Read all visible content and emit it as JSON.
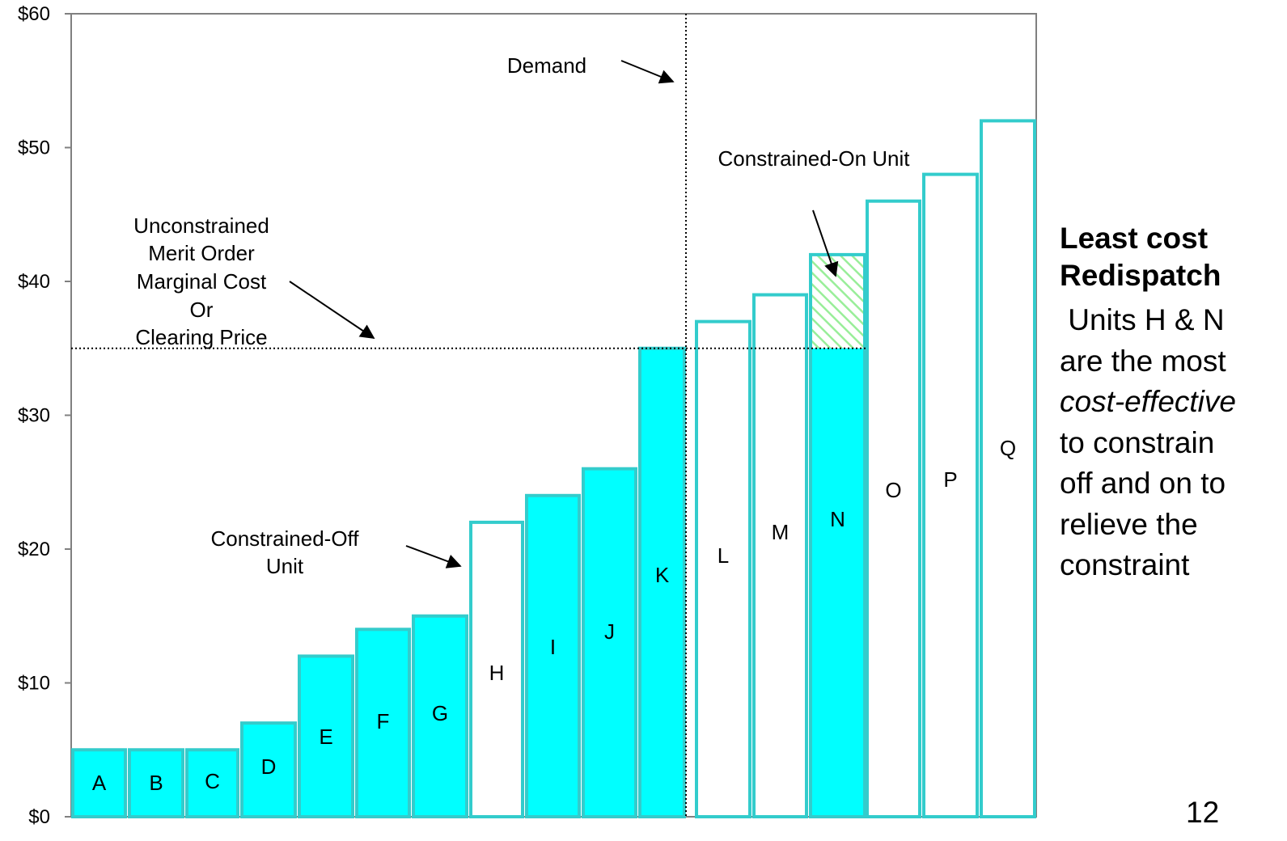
{
  "chart_data": {
    "type": "bar",
    "categories": [
      "A",
      "B",
      "C",
      "D",
      "E",
      "F",
      "G",
      "H",
      "I",
      "J",
      "K",
      "L",
      "M",
      "N",
      "O",
      "P",
      "Q"
    ],
    "values": [
      5,
      5,
      5,
      7,
      12,
      14,
      15,
      22,
      24,
      26,
      35,
      37,
      39,
      42,
      46,
      48,
      52
    ],
    "series": [
      {
        "values": [
          5,
          5,
          5,
          7,
          12,
          14,
          15,
          null,
          24,
          26,
          35,
          null,
          null,
          35,
          null,
          null,
          null
        ]
      },
      {
        "values": [
          null,
          null,
          null,
          null,
          null,
          null,
          null,
          22,
          null,
          null,
          null,
          37,
          39,
          null,
          46,
          48,
          52
        ]
      },
      {
        "values": [
          null,
          null,
          null,
          null,
          null,
          null,
          null,
          null,
          null,
          null,
          null,
          null,
          null,
          7,
          null,
          null,
          null
        ]
      }
    ],
    "ylim": [
      0,
      60
    ],
    "yticks": [
      0,
      10,
      20,
      30,
      40,
      50,
      60
    ],
    "ytick_labels": [
      "$0",
      "$10",
      "$20",
      "$30",
      "$40",
      "$50",
      "$60"
    ],
    "clearing_price": 35,
    "annotations": {
      "demand": "Demand",
      "constrained_on": "Constrained-On Unit",
      "clearing_lines": [
        "Unconstrained",
        "Merit Order",
        "Marginal Cost",
        "Or",
        "Clearing Price"
      ],
      "constrained_off_lines": [
        "Constrained-Off",
        "Unit"
      ]
    },
    "grid": false
  },
  "colors": {
    "cyan_fill": "#00ffff",
    "bar_border": "#33cccc",
    "hatch": "#99ee99",
    "frame": "#808080"
  },
  "sidebar": {
    "title_line1": "Least cost",
    "title_line2": "Redispatch",
    "body_line1": " Units H & N",
    "body_line2": "are the most",
    "body_line3": "cost-effective",
    "body_line4": "to constrain",
    "body_line5": "off and on to",
    "body_line6": "relieve the",
    "body_line7": "constraint"
  },
  "page_number": "12"
}
